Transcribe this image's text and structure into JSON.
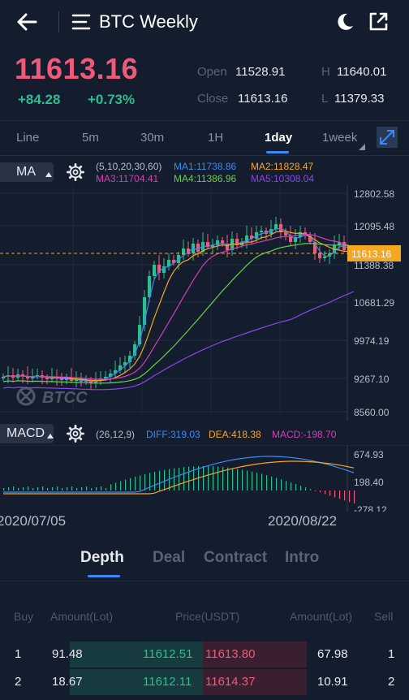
{
  "header": {
    "title": "BTC Weekly"
  },
  "price": {
    "last": "11613.16",
    "change_abs": "+84.28",
    "change_pct": "+0.73%"
  },
  "stats": {
    "open_label": "Open",
    "open": "11528.91",
    "close_label": "Close",
    "close": "11613.16",
    "high_label": "H",
    "high": "11640.01",
    "low_label": "L",
    "low": "11379.33"
  },
  "intervals": [
    "Line",
    "5m",
    "30m",
    "1H",
    "1day",
    "1week"
  ],
  "active_interval": "1day",
  "ma": {
    "button": "MA",
    "params": "(5,10,20,30,60)",
    "ma1": "MA1:11738.86",
    "ma2": "MA2:11828.47",
    "ma3": "MA3:11704.41",
    "ma4": "MA4:11386.96",
    "ma5": "MA5:10308.04"
  },
  "yaxis": [
    "12802.58",
    "12095.48",
    "11388.38",
    "10681.29",
    "9974.19",
    "9267.10",
    "8560.00"
  ],
  "current_price_tag": "11613.16",
  "watermark": "BTCC",
  "macd": {
    "button": "MACD",
    "params": "(26,12,9)",
    "diff": "DIFF:319.03",
    "dea": "DEA:418.38",
    "macd": "MACD:-198.70",
    "yaxis": [
      "674.93",
      "198.40",
      "-278.12"
    ]
  },
  "dates": [
    "2020/07/05",
    "2020/08/22"
  ],
  "bottom_tabs": [
    "Depth",
    "Deal",
    "Contract",
    "Intro"
  ],
  "depth": {
    "headers": {
      "buy": "Buy",
      "amount_left": "Amount(Lot)",
      "price": "Price(USDT)",
      "amount_right": "Amount(Lot)",
      "sell": "Sell"
    },
    "rows": [
      {
        "buy": "1",
        "buy_amount": "91.48",
        "bid": "11612.51",
        "ask": "11613.80",
        "sell_amount": "67.98",
        "sell": "1"
      },
      {
        "buy": "2",
        "buy_amount": "18.67",
        "bid": "11612.11",
        "ask": "11614.37",
        "sell_amount": "10.91",
        "sell": "2"
      }
    ]
  },
  "colors": {
    "up": "#2dbd8f",
    "down": "#ef5a79",
    "accent": "#3a8af5"
  }
}
